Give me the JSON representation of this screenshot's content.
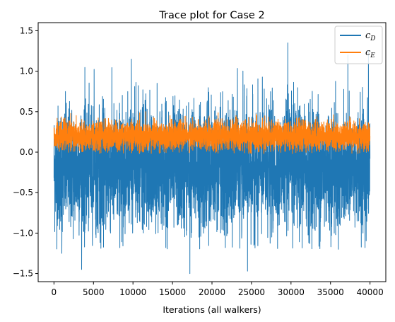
{
  "chart_data": {
    "type": "line",
    "title": "Trace plot for Case 2",
    "xlabel": "Iterations (all walkers)",
    "ylabel": "",
    "xlim": [
      -2000,
      42000
    ],
    "ylim": [
      -1.6,
      1.6
    ],
    "x_ticks": [
      0,
      5000,
      10000,
      15000,
      20000,
      25000,
      30000,
      35000,
      40000
    ],
    "y_ticks": [
      -1.5,
      -1.0,
      -0.5,
      0.0,
      0.5,
      1.0,
      1.5
    ],
    "x_tick_labels": [
      "0",
      "5000",
      "10000",
      "15000",
      "20000",
      "25000",
      "30000",
      "35000",
      "40000"
    ],
    "y_tick_labels": [
      "−1.5",
      "−1.0",
      "−0.5",
      "0.0",
      "0.5",
      "1.0",
      "1.5"
    ],
    "grid": false,
    "legend_position": "top-right",
    "series": [
      {
        "name": "c_D",
        "label_main": "c",
        "label_sub": "D",
        "color": "#1f77b4",
        "x_range": [
          0,
          40000
        ],
        "band_typical": [
          -1.0,
          0.8
        ],
        "extremes": [
          1.35,
          -1.5
        ],
        "summary": "noisy trace around ~-0.2, mostly between -1.0 and 0.8"
      },
      {
        "name": "c_E",
        "label_main": "c",
        "label_sub": "E",
        "color": "#ff7f0e",
        "x_range": [
          0,
          40000
        ],
        "band_typical": [
          0.0,
          0.45
        ],
        "extremes": [
          0.55,
          -0.05
        ],
        "summary": "noisy trace around ~0.2, mostly between 0.0 and 0.45"
      }
    ]
  }
}
